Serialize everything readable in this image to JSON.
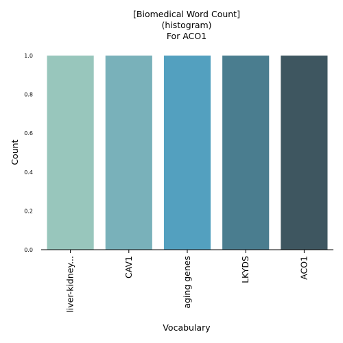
{
  "chart_data": {
    "type": "bar",
    "title_lines": [
      "[Biomedical Word Count]",
      "(histogram)",
      "For ACO1"
    ],
    "xlabel": "Vocabulary",
    "ylabel": "Count",
    "categories": [
      "liver-kidney...",
      "CAV1",
      "aging genes",
      "LKYDS",
      "ACO1"
    ],
    "values": [
      1,
      1,
      1,
      1,
      1
    ],
    "ylim": [
      0,
      1
    ],
    "yticks": [
      "0.0",
      "0.2",
      "0.4",
      "0.6",
      "0.8",
      "1.0"
    ],
    "grid": false,
    "legend": "none",
    "colors": [
      "#98c6bc",
      "#79b1ba",
      "#53a0bf",
      "#4a7d8f",
      "#3e5660"
    ]
  }
}
